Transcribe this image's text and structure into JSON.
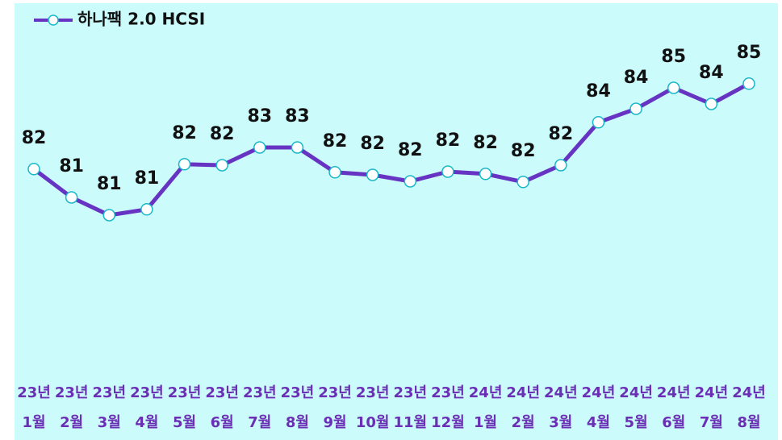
{
  "chart_data": {
    "type": "line",
    "legend": "top-left",
    "categories": [
      [
        "23년",
        "1월"
      ],
      [
        "23년",
        "2월"
      ],
      [
        "23년",
        "3월"
      ],
      [
        "23년",
        "4월"
      ],
      [
        "23년",
        "5월"
      ],
      [
        "23년",
        "6월"
      ],
      [
        "23년",
        "7월"
      ],
      [
        "23년",
        "8월"
      ],
      [
        "23년",
        "9월"
      ],
      [
        "23년",
        "10월"
      ],
      [
        "23년",
        "11월"
      ],
      [
        "23년",
        "12월"
      ],
      [
        "24년",
        "1월"
      ],
      [
        "24년",
        "2월"
      ],
      [
        "24년",
        "3월"
      ],
      [
        "24년",
        "4월"
      ],
      [
        "24년",
        "5월"
      ],
      [
        "24년",
        "6월"
      ],
      [
        "24년",
        "7월"
      ],
      [
        "24년",
        "8월"
      ]
    ],
    "series": [
      {
        "name": "하나팩 2.0 HCSI",
        "color": "#6633c2",
        "values": [
          82.33,
          81.45,
          80.9,
          81.08,
          82.48,
          82.45,
          83.0,
          83.0,
          82.23,
          82.15,
          81.95,
          82.25,
          82.18,
          81.93,
          82.45,
          83.78,
          84.2,
          84.85,
          84.35,
          84.98
        ],
        "value_labels": [
          "82",
          "81",
          "81",
          "81",
          "82",
          "82",
          "83",
          "83",
          "82",
          "82",
          "82",
          "82",
          "82",
          "82",
          "82",
          "84",
          "84",
          "85",
          "84",
          "85"
        ]
      }
    ],
    "ylim": [
      78,
      86
    ]
  }
}
